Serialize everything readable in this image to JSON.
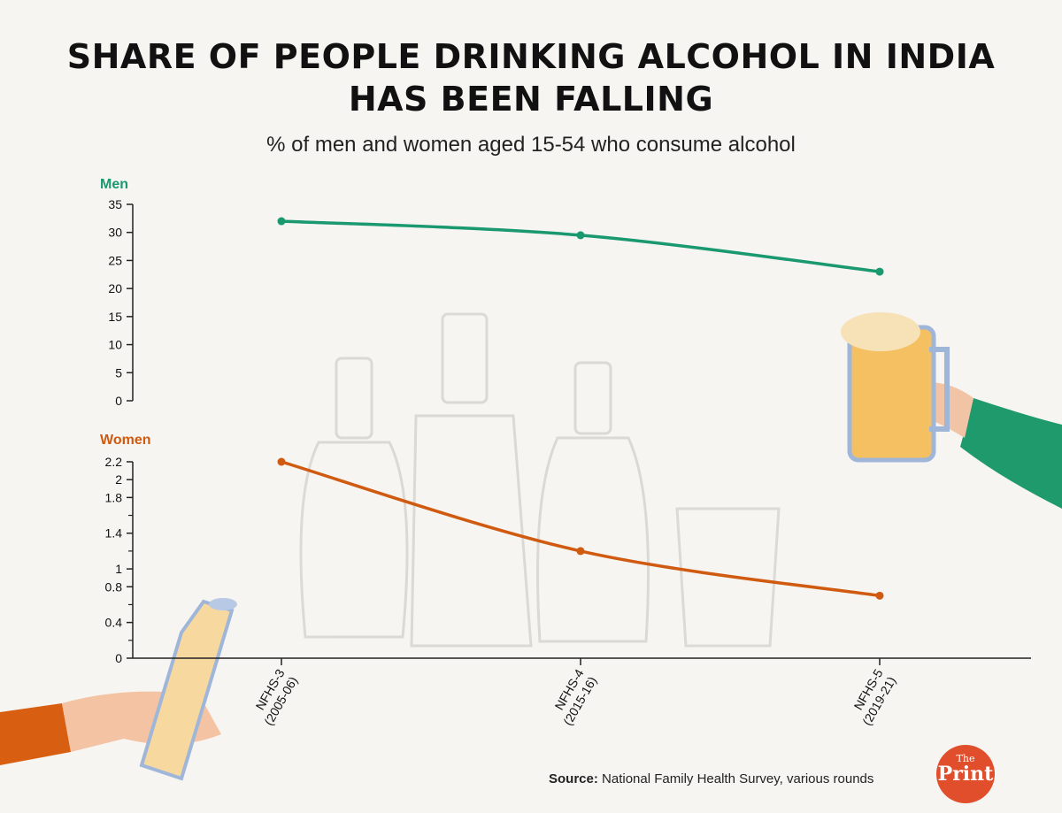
{
  "title_line1": "SHARE OF PEOPLE DRINKING ALCOHOL IN INDIA",
  "title_line2": "HAS BEEN FALLING",
  "subtitle": "% of men and women aged 15-54 who consume alcohol",
  "source_label": "Source:",
  "source_text": "National Family Health Survey, various rounds",
  "logo": {
    "the": "The",
    "print": "Print"
  },
  "chart_data": [
    {
      "type": "line",
      "panel_label": "Men",
      "color": "#1a9870",
      "x": [
        "NFHS-3 (2005-06)",
        "NFHS-4 (2015-16)",
        "NFHS-5 (2019-21)"
      ],
      "values": [
        32,
        29.5,
        23
      ],
      "ylim": [
        0,
        35
      ],
      "yticks": [
        "0",
        "5",
        "10",
        "15",
        "20",
        "25",
        "30",
        "35"
      ],
      "ytick_values": [
        0,
        5,
        10,
        15,
        20,
        25,
        30,
        35
      ]
    },
    {
      "type": "line",
      "panel_label": "Women",
      "color": "#cf5a10",
      "x": [
        "NFHS-3 (2005-06)",
        "NFHS-4 (2015-16)",
        "NFHS-5 (2019-21)"
      ],
      "x_tick_lines": [
        [
          "NFHS-3",
          "(2005-06)"
        ],
        [
          "NFHS-4",
          "(2015-16)"
        ],
        [
          "NFHS-5",
          "(2019-21)"
        ]
      ],
      "values": [
        2.2,
        1.2,
        0.7
      ],
      "ylim": [
        0,
        2.2
      ],
      "yticks": [
        "0",
        "0.4",
        "0.8",
        "1",
        "1.4",
        "1.8",
        "2",
        "2.2"
      ],
      "ytick_values": [
        0,
        0.4,
        0.8,
        1,
        1.4,
        1.8,
        2,
        2.2
      ],
      "minor_tick_values": [
        0.2,
        0.6,
        1.2,
        1.6
      ]
    }
  ]
}
